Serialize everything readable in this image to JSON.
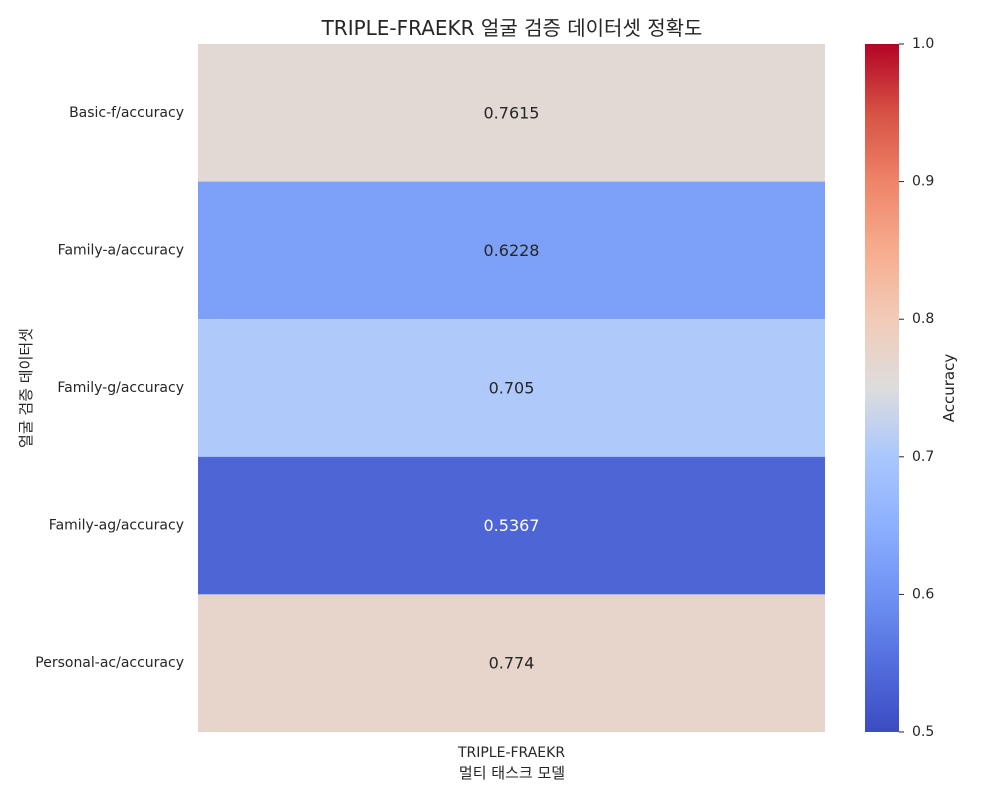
{
  "chart_data": {
    "type": "heatmap",
    "title": "TRIPLE-FRAEKR 얼굴 검증 데이터셋 정확도",
    "xlabel": "멀티 태스크 모델",
    "ylabel": "얼굴 검증 데이터셋",
    "x_categories": [
      "TRIPLE-FRAEKR"
    ],
    "y_categories": [
      "Basic-f/accuracy",
      "Family-a/accuracy",
      "Family-g/accuracy",
      "Family-ag/accuracy",
      "Personal-ac/accuracy"
    ],
    "values": [
      [
        0.7615
      ],
      [
        0.6228
      ],
      [
        0.705
      ],
      [
        0.5367
      ],
      [
        0.774
      ]
    ],
    "value_labels": [
      [
        "0.7615"
      ],
      [
        "0.6228"
      ],
      [
        "0.705"
      ],
      [
        "0.5367"
      ],
      [
        "0.774"
      ]
    ],
    "colormap": "coolwarm",
    "colorbar": {
      "label": "Accuracy",
      "range": [
        0.5,
        1.0
      ],
      "ticks": [
        0.5,
        0.6,
        0.7,
        0.8,
        0.9,
        1.0
      ],
      "tick_labels": [
        "0.5",
        "0.6",
        "0.7",
        "0.8",
        "0.9",
        "1.0"
      ]
    },
    "legend": "colorbar-right"
  }
}
